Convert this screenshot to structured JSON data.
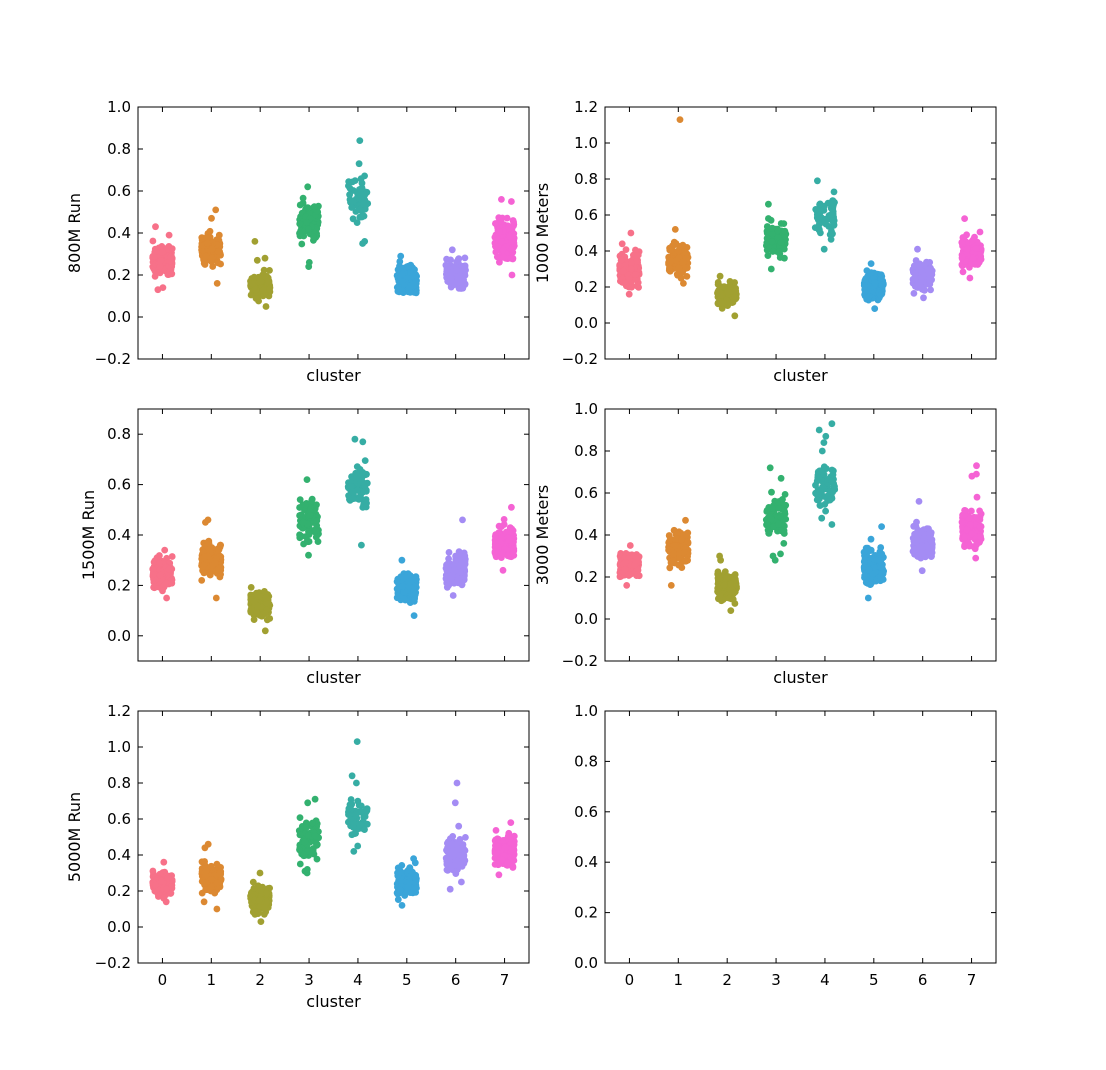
{
  "figure": {
    "background": "#ffffff"
  },
  "palette": [
    "#f77189",
    "#dc8932",
    "#a1a031",
    "#33b16f",
    "#36ada4",
    "#3aa5d9",
    "#a48cf4",
    "#f563d4"
  ],
  "chart_data": [
    {
      "type": "scatter",
      "subtype": "stripplot",
      "panel": "top-left",
      "ylabel": "800M Run",
      "xlabel": "cluster",
      "categories": [
        "0",
        "1",
        "2",
        "3",
        "4",
        "5",
        "6",
        "7"
      ],
      "show_x_tick_labels": false,
      "ylim": [
        -0.2,
        1.0
      ],
      "yticks": [
        -0.2,
        0.0,
        0.2,
        0.4,
        0.6,
        0.8,
        1.0
      ],
      "ytick_labels": [
        "−0.2",
        "0.0",
        "0.2",
        "0.4",
        "0.6",
        "0.8",
        "1.0"
      ],
      "series": [
        {
          "name": "0",
          "count": 160,
          "lo": 0.17,
          "hi": 0.37,
          "outliers": [
            0.13,
            0.14,
            0.39,
            0.43
          ]
        },
        {
          "name": "1",
          "count": 110,
          "lo": 0.23,
          "hi": 0.42,
          "outliers": [
            0.16,
            0.47,
            0.51
          ]
        },
        {
          "name": "2",
          "count": 110,
          "lo": 0.06,
          "hi": 0.24,
          "outliers": [
            0.05,
            0.27,
            0.28,
            0.36
          ]
        },
        {
          "name": "3",
          "count": 90,
          "lo": 0.31,
          "hi": 0.6,
          "outliers": [
            0.24,
            0.26,
            0.62
          ]
        },
        {
          "name": "4",
          "count": 50,
          "lo": 0.42,
          "hi": 0.72,
          "outliers": [
            0.35,
            0.36,
            0.73,
            0.84
          ]
        },
        {
          "name": "5",
          "count": 150,
          "lo": 0.07,
          "hi": 0.28,
          "outliers": [
            0.29
          ]
        },
        {
          "name": "6",
          "count": 120,
          "lo": 0.11,
          "hi": 0.3,
          "outliers": [
            0.32
          ]
        },
        {
          "name": "7",
          "count": 140,
          "lo": 0.22,
          "hi": 0.52,
          "outliers": [
            0.2,
            0.55,
            0.56
          ]
        }
      ]
    },
    {
      "type": "scatter",
      "subtype": "stripplot",
      "panel": "top-right",
      "ylabel": "1000 Meters",
      "xlabel": "cluster",
      "categories": [
        "0",
        "1",
        "2",
        "3",
        "4",
        "5",
        "6",
        "7"
      ],
      "show_x_tick_labels": false,
      "ylim": [
        -0.2,
        1.2
      ],
      "yticks": [
        -0.2,
        0.0,
        0.2,
        0.4,
        0.6,
        0.8,
        1.0,
        1.2
      ],
      "ytick_labels": [
        "−0.2",
        "0.0",
        "0.2",
        "0.4",
        "0.6",
        "0.8",
        "1.0",
        "1.2"
      ],
      "series": [
        {
          "name": "0",
          "count": 160,
          "lo": 0.18,
          "hi": 0.42,
          "outliers": [
            0.16,
            0.44,
            0.5
          ]
        },
        {
          "name": "1",
          "count": 120,
          "lo": 0.23,
          "hi": 0.47,
          "outliers": [
            0.22,
            0.52,
            1.13
          ]
        },
        {
          "name": "2",
          "count": 110,
          "lo": 0.06,
          "hi": 0.25,
          "outliers": [
            0.04,
            0.26
          ]
        },
        {
          "name": "3",
          "count": 90,
          "lo": 0.32,
          "hi": 0.62,
          "outliers": [
            0.3,
            0.66
          ]
        },
        {
          "name": "4",
          "count": 60,
          "lo": 0.42,
          "hi": 0.76,
          "outliers": [
            0.41,
            0.79
          ]
        },
        {
          "name": "5",
          "count": 150,
          "lo": 0.1,
          "hi": 0.31,
          "outliers": [
            0.08,
            0.33
          ]
        },
        {
          "name": "6",
          "count": 120,
          "lo": 0.15,
          "hi": 0.38,
          "outliers": [
            0.14,
            0.41
          ]
        },
        {
          "name": "7",
          "count": 140,
          "lo": 0.26,
          "hi": 0.52,
          "outliers": [
            0.25,
            0.58
          ]
        }
      ]
    },
    {
      "type": "scatter",
      "subtype": "stripplot",
      "panel": "middle-left",
      "ylabel": "1500M Run",
      "xlabel": "cluster",
      "categories": [
        "0",
        "1",
        "2",
        "3",
        "4",
        "5",
        "6",
        "7"
      ],
      "show_x_tick_labels": false,
      "ylim": [
        -0.1,
        0.9
      ],
      "yticks": [
        0.0,
        0.2,
        0.4,
        0.6,
        0.8
      ],
      "ytick_labels": [
        "0.0",
        "0.2",
        "0.4",
        "0.6",
        "0.8"
      ],
      "series": [
        {
          "name": "0",
          "count": 160,
          "lo": 0.16,
          "hi": 0.33,
          "outliers": [
            0.15,
            0.34
          ]
        },
        {
          "name": "1",
          "count": 120,
          "lo": 0.21,
          "hi": 0.4,
          "outliers": [
            0.15,
            0.45,
            0.46
          ]
        },
        {
          "name": "2",
          "count": 110,
          "lo": 0.05,
          "hi": 0.2,
          "outliers": [
            0.02
          ]
        },
        {
          "name": "3",
          "count": 90,
          "lo": 0.34,
          "hi": 0.57,
          "outliers": [
            0.32,
            0.62
          ]
        },
        {
          "name": "4",
          "count": 60,
          "lo": 0.46,
          "hi": 0.72,
          "outliers": [
            0.36,
            0.77,
            0.78
          ]
        },
        {
          "name": "5",
          "count": 150,
          "lo": 0.11,
          "hi": 0.28,
          "outliers": [
            0.08,
            0.3
          ]
        },
        {
          "name": "6",
          "count": 120,
          "lo": 0.17,
          "hi": 0.35,
          "outliers": [
            0.16,
            0.46
          ]
        },
        {
          "name": "7",
          "count": 140,
          "lo": 0.27,
          "hi": 0.47,
          "outliers": [
            0.26,
            0.51
          ]
        }
      ]
    },
    {
      "type": "scatter",
      "subtype": "stripplot",
      "panel": "middle-right",
      "ylabel": "3000 Meters",
      "xlabel": "cluster",
      "categories": [
        "0",
        "1",
        "2",
        "3",
        "4",
        "5",
        "6",
        "7"
      ],
      "show_x_tick_labels": false,
      "ylim": [
        -0.2,
        1.0
      ],
      "yticks": [
        -0.2,
        0.0,
        0.2,
        0.4,
        0.6,
        0.8,
        1.0
      ],
      "ytick_labels": [
        "−0.2",
        "0.0",
        "0.2",
        "0.4",
        "0.6",
        "0.8",
        "1.0"
      ],
      "series": [
        {
          "name": "0",
          "count": 160,
          "lo": 0.17,
          "hi": 0.34,
          "outliers": [
            0.16,
            0.35
          ]
        },
        {
          "name": "1",
          "count": 120,
          "lo": 0.23,
          "hi": 0.45,
          "outliers": [
            0.16,
            0.47
          ]
        },
        {
          "name": "2",
          "count": 110,
          "lo": 0.05,
          "hi": 0.25,
          "outliers": [
            0.04,
            0.28,
            0.3
          ]
        },
        {
          "name": "3",
          "count": 90,
          "lo": 0.35,
          "hi": 0.62,
          "outliers": [
            0.28,
            0.3,
            0.31,
            0.67,
            0.72
          ]
        },
        {
          "name": "4",
          "count": 60,
          "lo": 0.5,
          "hi": 0.76,
          "outliers": [
            0.45,
            0.48,
            0.8,
            0.84,
            0.87,
            0.9,
            0.93
          ]
        },
        {
          "name": "5",
          "count": 150,
          "lo": 0.13,
          "hi": 0.36,
          "outliers": [
            0.1,
            0.38,
            0.44
          ]
        },
        {
          "name": "6",
          "count": 120,
          "lo": 0.24,
          "hi": 0.5,
          "outliers": [
            0.23,
            0.56
          ]
        },
        {
          "name": "7",
          "count": 140,
          "lo": 0.3,
          "hi": 0.56,
          "outliers": [
            0.29,
            0.58,
            0.68,
            0.69,
            0.73
          ]
        }
      ]
    },
    {
      "type": "scatter",
      "subtype": "stripplot",
      "panel": "bottom-left",
      "ylabel": "5000M Run",
      "xlabel": "cluster",
      "categories": [
        "0",
        "1",
        "2",
        "3",
        "4",
        "5",
        "6",
        "7"
      ],
      "show_x_tick_labels": true,
      "ylim": [
        -0.2,
        1.2
      ],
      "yticks": [
        -0.2,
        0.0,
        0.2,
        0.4,
        0.6,
        0.8,
        1.0,
        1.2
      ],
      "ytick_labels": [
        "−0.2",
        "0.0",
        "0.2",
        "0.4",
        "0.6",
        "0.8",
        "1.0",
        "1.2"
      ],
      "series": [
        {
          "name": "0",
          "count": 160,
          "lo": 0.15,
          "hi": 0.33,
          "outliers": [
            0.14,
            0.36
          ]
        },
        {
          "name": "1",
          "count": 120,
          "lo": 0.16,
          "hi": 0.4,
          "outliers": [
            0.1,
            0.14,
            0.44,
            0.46
          ]
        },
        {
          "name": "2",
          "count": 110,
          "lo": 0.04,
          "hi": 0.27,
          "outliers": [
            0.03,
            0.3
          ]
        },
        {
          "name": "3",
          "count": 90,
          "lo": 0.33,
          "hi": 0.65,
          "outliers": [
            0.3,
            0.31,
            0.32,
            0.69,
            0.71
          ]
        },
        {
          "name": "4",
          "count": 60,
          "lo": 0.47,
          "hi": 0.76,
          "outliers": [
            0.42,
            0.45,
            0.8,
            0.84,
            1.03
          ]
        },
        {
          "name": "5",
          "count": 150,
          "lo": 0.13,
          "hi": 0.37,
          "outliers": [
            0.12,
            0.38
          ]
        },
        {
          "name": "6",
          "count": 120,
          "lo": 0.27,
          "hi": 0.52,
          "outliers": [
            0.21,
            0.25,
            0.56,
            0.69,
            0.8
          ]
        },
        {
          "name": "7",
          "count": 140,
          "lo": 0.3,
          "hi": 0.56,
          "outliers": [
            0.29,
            0.58
          ]
        }
      ]
    },
    {
      "type": "scatter",
      "subtype": "stripplot",
      "panel": "bottom-right",
      "ylabel": "",
      "xlabel": "",
      "categories": [
        "0",
        "1",
        "2",
        "3",
        "4",
        "5",
        "6",
        "7"
      ],
      "show_x_tick_labels": true,
      "ylim": [
        0.0,
        1.0
      ],
      "yticks": [
        0.0,
        0.2,
        0.4,
        0.6,
        0.8,
        1.0
      ],
      "ytick_labels": [
        "0.0",
        "0.2",
        "0.4",
        "0.6",
        "0.8",
        "1.0"
      ],
      "series": []
    }
  ]
}
